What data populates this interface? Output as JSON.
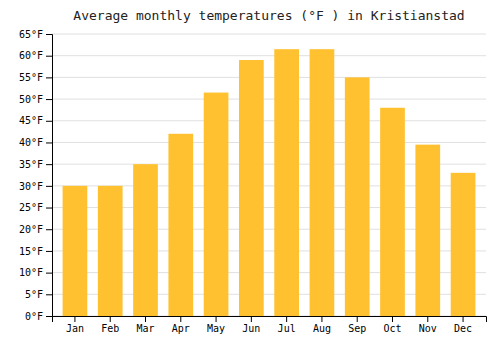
{
  "chart_data": {
    "type": "bar",
    "title": "Average monthly temperatures (°F ) in Kristianstad",
    "categories": [
      "Jan",
      "Feb",
      "Mar",
      "Apr",
      "May",
      "Jun",
      "Jul",
      "Aug",
      "Sep",
      "Oct",
      "Nov",
      "Dec"
    ],
    "values": [
      30,
      30,
      35,
      42,
      51.5,
      59,
      61.5,
      61.5,
      55,
      48,
      39.5,
      33
    ],
    "color": "#FFC130",
    "ylim": [
      0,
      65
    ],
    "yticks": [
      {
        "value": 0,
        "label": "0°F"
      },
      {
        "value": 5,
        "label": "5°F"
      },
      {
        "value": 10,
        "label": "10°F"
      },
      {
        "value": 15,
        "label": "15°F"
      },
      {
        "value": 20,
        "label": "20°F"
      },
      {
        "value": 25,
        "label": "25°F"
      },
      {
        "value": 30,
        "label": "30°F"
      },
      {
        "value": 35,
        "label": "35°F"
      },
      {
        "value": 40,
        "label": "40°F"
      },
      {
        "value": 45,
        "label": "45°F"
      },
      {
        "value": 50,
        "label": "50°F"
      },
      {
        "value": 55,
        "label": "55°F"
      },
      {
        "value": 60,
        "label": "60°F"
      },
      {
        "value": 65,
        "label": "65°F"
      }
    ],
    "grid": true
  }
}
